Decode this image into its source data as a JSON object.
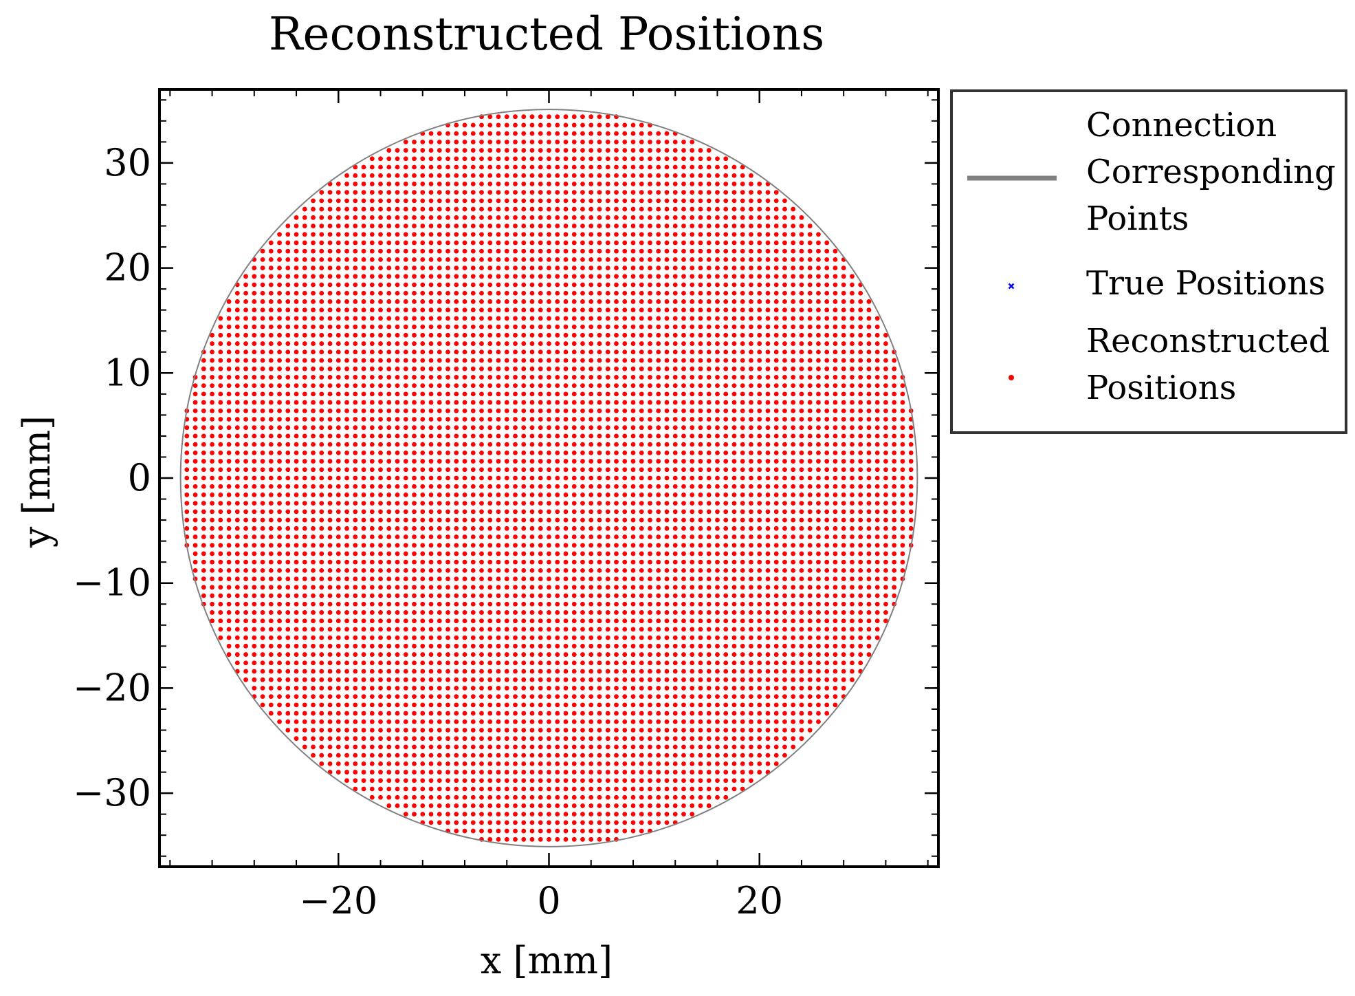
{
  "chart_data": {
    "type": "scatter",
    "title": "Reconstructed Positions",
    "xlabel": "x [mm]",
    "ylabel": "y [mm]",
    "xlim": [
      -37,
      37
    ],
    "ylim": [
      -37,
      37
    ],
    "x_ticks": [
      -20,
      0,
      20
    ],
    "x_tick_labels": [
      "−20",
      "0",
      "20"
    ],
    "y_ticks": [
      30,
      20,
      10,
      0,
      -10,
      -20,
      -30
    ],
    "y_tick_labels": [
      "30",
      "20",
      "10",
      "0",
      "−10",
      "−20",
      "−30"
    ],
    "x_minor_step": 4,
    "y_minor_step": 2,
    "grid": false,
    "legend_placement": "outside-right-top",
    "boundary_circle": {
      "center_x": 0,
      "center_y": 0,
      "radius": 35,
      "color": "#808080"
    },
    "grid_points": {
      "spacing": 0.8,
      "radius": 35
    },
    "legend": [
      {
        "lines": [
          "Connection",
          "Corresponding",
          "Points"
        ],
        "marker": "line",
        "color": "#808080"
      },
      {
        "lines": [
          "True Positions"
        ],
        "marker": "x",
        "color": "#0000ff"
      },
      {
        "lines": [
          "Reconstructed",
          "Positions"
        ],
        "marker": "dot",
        "color": "#ff0000"
      }
    ],
    "series": [
      {
        "name": "True Positions",
        "marker": "x",
        "color": "#0000ff"
      },
      {
        "name": "Reconstructed Positions",
        "marker": "dot",
        "color": "#ff0000"
      }
    ]
  }
}
